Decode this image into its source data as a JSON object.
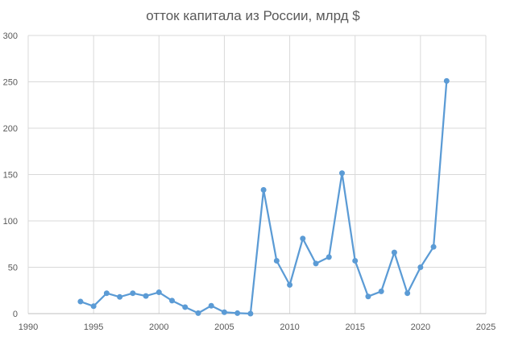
{
  "chart_data": {
    "type": "scatter",
    "title": "отток капитала из России, млрд $",
    "xlabel": "",
    "ylabel": "",
    "xlim": [
      1990,
      2025
    ],
    "ylim": [
      0,
      300
    ],
    "xticks": [
      1990,
      1995,
      2000,
      2005,
      2010,
      2015,
      2020,
      2025
    ],
    "yticks": [
      0,
      50,
      100,
      150,
      200,
      250,
      300
    ],
    "grid": true,
    "legend": "none",
    "line_color": "#5b9bd5",
    "series": [
      {
        "x": [
          1994,
          1995,
          1996,
          1997,
          1998,
          1999,
          2000,
          2001,
          2002,
          2003,
          2004,
          2005,
          2006,
          2007,
          2008,
          2009,
          2010,
          2011,
          2012,
          2013,
          2014,
          2015,
          2016,
          2017,
          2018,
          2019,
          2020,
          2021,
          2022
        ],
        "y": [
          13,
          8,
          22,
          18,
          22,
          19,
          23,
          14,
          7,
          0.5,
          8.5,
          1.5,
          0.5,
          0,
          133.5,
          57,
          31,
          81,
          54,
          61,
          151.5,
          57,
          18.5,
          24,
          66,
          22,
          50,
          72,
          251
        ]
      }
    ]
  }
}
